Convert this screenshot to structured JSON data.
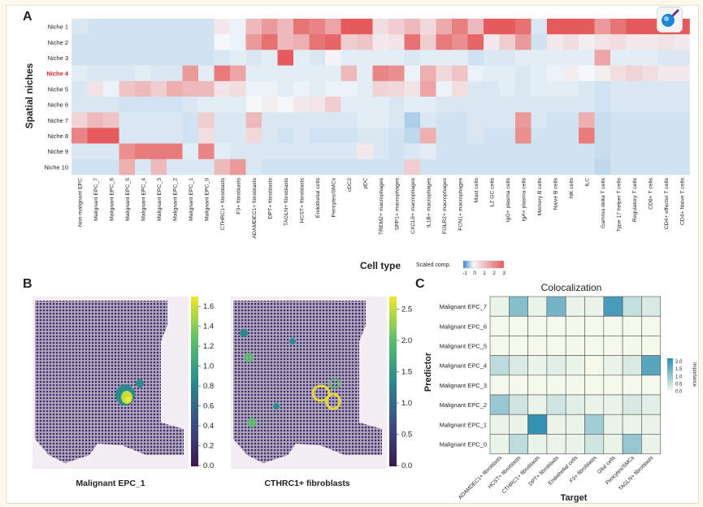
{
  "panels": {
    "a": "A",
    "b": "B",
    "c": "C"
  },
  "panel_a": {
    "ylabel": "Spatial niches",
    "xlabel": "Cell type",
    "legend_title": "Scaled comp.",
    "legend_ticks": [
      "-1",
      "0",
      "1",
      "2",
      "3"
    ],
    "highlight_row": "Niche 4",
    "highlight_color": "#e0232a"
  },
  "panel_b": {
    "left_title": "Malignant EPC_1",
    "right_title": "CTHRC1+ fibroblasts",
    "left_scale": [
      "1.6",
      "1.4",
      "1.2",
      "1.0",
      "0.8",
      "0.6",
      "0.4",
      "0.2",
      "0.0"
    ],
    "right_scale": [
      "2.5",
      "2.0",
      "1.5",
      "1.0",
      "0.5",
      "0.0"
    ]
  },
  "icons": {
    "zoom": "magnifier-icon"
  },
  "colors": {
    "low": "#3a86c4",
    "mid": "#f4f8fb",
    "high": "#e55b5b",
    "imp": "#2b8cb0"
  },
  "chart_data": [
    {
      "type": "heatmap",
      "title": "",
      "xlabel": "Cell type",
      "ylabel": "Spatial niches",
      "rows": [
        "Niche 1",
        "Niche 2",
        "Niche 3",
        "Niche 4",
        "Niche 5",
        "Niche 6",
        "Niche 7",
        "Niche 8",
        "Niche 9",
        "Niche 10"
      ],
      "columns": [
        "Non-malignant EPC",
        "Malignant EPC_7",
        "Malignant EPC_6",
        "Malignant EPC_5",
        "Malignant EPC_4",
        "Malignant EPC_3",
        "Malignant EPC_2",
        "Malignant EPC_1",
        "Malignant EPC_0",
        "CTHRC1+ fibroblasts",
        "F3+ fibroblasts",
        "ADAMDEC1+ fibroblasts",
        "DPT+ fibroblasts",
        "TAGLN+ fibroblasts",
        "HCST+ fibroblasts",
        "Endothelial cells",
        "Pericytes/SMCs",
        "cDC2",
        "pDC",
        "TREM2+ macrophages",
        "SPP1+ macrophages",
        "CXCL8+ macrophages",
        "IL1B+ macrophages",
        "FOLR2+ macrophages",
        "FCN1+ macrophages",
        "Mast cells",
        "LZ GC cells",
        "IgG+ plasma cells",
        "IgA+ plasma cells",
        "Memory B cells",
        "Naive B cells",
        "NK cells",
        "ILC",
        "Gamma delta T cells",
        "Type 17 helper T cells",
        "Regulatory T cells",
        "CD8+ T cells",
        "CD4+ effector T cells",
        "CD4+ Naive T cells"
      ],
      "values": [
        [
          -0.3,
          -0.4,
          -0.4,
          -0.4,
          -0.4,
          -0.4,
          -0.4,
          -0.4,
          -0.4,
          0.3,
          -0.1,
          1.2,
          1.8,
          1.2,
          2.5,
          2.2,
          1.6,
          3.0,
          3.0,
          0.5,
          0.8,
          1.2,
          0.6,
          1.5,
          2.3,
          1.2,
          3.0,
          3.0,
          2.6,
          -0.3,
          3.0,
          3.0,
          3.0,
          1.8,
          2.5,
          3.0,
          3.0,
          3.0,
          3.0
        ],
        [
          -0.4,
          -0.4,
          -0.4,
          -0.4,
          -0.4,
          -0.4,
          -0.4,
          -0.4,
          -0.4,
          0.0,
          -0.1,
          1.8,
          2.6,
          1.2,
          1.4,
          2.5,
          2.8,
          0.8,
          1.0,
          0.3,
          0.4,
          2.6,
          0.8,
          2.4,
          2.0,
          2.8,
          0.3,
          0.8,
          1.8,
          -0.4,
          0.3,
          0.5,
          0.2,
          0.4,
          0.5,
          0.3,
          0.3,
          0.4,
          0.3
        ],
        [
          -0.4,
          -0.4,
          -0.4,
          -0.4,
          -0.4,
          -0.4,
          -0.4,
          -0.4,
          -0.4,
          -0.3,
          -0.2,
          -0.3,
          -0.2,
          3.0,
          -0.2,
          -0.3,
          0.1,
          -0.2,
          -0.2,
          -0.2,
          -0.2,
          -0.3,
          -0.2,
          -0.2,
          -0.2,
          -0.4,
          -0.3,
          -0.3,
          -0.2,
          -0.2,
          -0.2,
          -0.2,
          -0.2,
          1.6,
          -0.2,
          -0.2,
          -0.2,
          -0.3,
          -0.3
        ],
        [
          -0.2,
          -0.3,
          -0.3,
          -0.3,
          -0.2,
          -0.3,
          -0.3,
          1.8,
          -0.2,
          2.4,
          1.6,
          -0.2,
          -0.2,
          -0.2,
          -0.2,
          -0.2,
          -0.2,
          1.2,
          -0.2,
          2.2,
          2.0,
          -0.1,
          1.4,
          0.6,
          1.0,
          -0.1,
          -0.2,
          -0.2,
          -0.3,
          -0.2,
          -0.1,
          0.2,
          0.0,
          0.2,
          0.5,
          0.7,
          0.5,
          0.3,
          0.3
        ],
        [
          -0.3,
          0.4,
          -0.1,
          1.0,
          1.2,
          0.8,
          1.4,
          1.2,
          1.2,
          0.4,
          0.5,
          -0.1,
          -0.1,
          -0.2,
          -0.1,
          -0.2,
          -0.1,
          -0.1,
          -0.2,
          0.7,
          0.6,
          0.4,
          1.6,
          -0.1,
          0.5,
          -0.3,
          -0.3,
          -0.2,
          -0.3,
          -0.2,
          -0.2,
          -0.2,
          -0.3,
          -0.4,
          -0.3,
          -0.3,
          -0.3,
          -0.3,
          -0.3
        ],
        [
          -0.3,
          -0.3,
          -0.3,
          -0.4,
          -0.4,
          -0.4,
          -0.4,
          -0.3,
          -0.2,
          -0.2,
          -0.2,
          0.0,
          0.2,
          0.0,
          0.3,
          0.4,
          0.8,
          -0.2,
          -0.2,
          -0.2,
          -0.3,
          -0.2,
          -0.2,
          -0.3,
          -0.3,
          -0.3,
          -0.3,
          -0.3,
          -0.3,
          -0.3,
          -0.3,
          -0.3,
          -0.3,
          -0.4,
          -0.3,
          -0.3,
          -0.3,
          -0.3,
          -0.3
        ],
        [
          0.7,
          1.2,
          1.0,
          -0.3,
          -0.3,
          -0.3,
          -0.3,
          -0.4,
          0.8,
          -0.3,
          -0.3,
          1.2,
          -0.3,
          -0.3,
          -0.3,
          -0.3,
          -0.3,
          -0.3,
          -0.2,
          -0.2,
          -0.3,
          -0.8,
          -0.3,
          -0.4,
          -0.4,
          -0.3,
          -0.3,
          -0.3,
          1.8,
          -0.3,
          -0.4,
          -0.4,
          1.4,
          -0.5,
          -0.4,
          -0.4,
          -0.4,
          -0.4,
          -0.4
        ],
        [
          2.2,
          3.0,
          3.0,
          -0.3,
          -0.3,
          -0.3,
          -0.3,
          -0.4,
          0.5,
          -0.3,
          -0.3,
          0.6,
          -0.3,
          -0.4,
          -0.3,
          -0.4,
          -0.4,
          -0.4,
          -0.3,
          -0.3,
          -0.4,
          -0.6,
          1.4,
          -0.4,
          -0.4,
          -0.3,
          -0.4,
          -0.4,
          2.0,
          -0.4,
          -0.4,
          -0.4,
          2.4,
          -0.5,
          -0.4,
          -0.4,
          -0.4,
          -0.4,
          -0.4
        ],
        [
          -0.3,
          -0.3,
          -0.3,
          2.0,
          2.4,
          2.4,
          2.4,
          -0.2,
          2.2,
          -0.2,
          -0.3,
          -0.3,
          -0.3,
          -0.3,
          -0.3,
          -0.3,
          -0.3,
          -0.3,
          0.3,
          -0.3,
          -0.4,
          -0.3,
          -0.2,
          -0.4,
          -0.4,
          -0.4,
          -0.4,
          -0.4,
          -0.4,
          -0.4,
          -0.4,
          -0.4,
          -0.4,
          -0.5,
          -0.4,
          -0.4,
          -0.4,
          -0.4,
          -0.4
        ],
        [
          -0.4,
          -0.4,
          -0.4,
          1.4,
          -0.3,
          1.2,
          -0.3,
          -0.3,
          -0.3,
          1.2,
          1.8,
          -0.3,
          -0.4,
          -0.4,
          -0.4,
          -0.4,
          -0.4,
          -0.4,
          -0.4,
          -0.4,
          -0.4,
          0.8,
          -0.4,
          -0.4,
          -0.4,
          -0.4,
          -0.4,
          -0.4,
          -0.4,
          -0.4,
          -0.4,
          -0.4,
          -0.4,
          -0.6,
          -0.4,
          -0.4,
          -0.4,
          -0.4,
          -0.4
        ]
      ],
      "vmin": -1,
      "vmax": 3,
      "colorbar": {
        "label": "Scaled comp.",
        "ticks": [
          -1,
          0,
          1,
          2,
          3
        ]
      }
    },
    {
      "type": "heatmap",
      "title": "Malignant EPC_1",
      "description_values": "spatial abundance map",
      "colorbar": {
        "ticks": [
          0.0,
          0.2,
          0.4,
          0.6,
          0.8,
          1.0,
          1.2,
          1.4,
          1.6
        ],
        "range": [
          0,
          1.7
        ]
      }
    },
    {
      "type": "heatmap",
      "title": "CTHRC1+ fibroblasts",
      "colorbar": {
        "ticks": [
          0.0,
          0.5,
          1.0,
          1.5,
          2.0,
          2.5
        ],
        "range": [
          0,
          2.7
        ]
      }
    },
    {
      "type": "heatmap",
      "title": "Colocalization",
      "xlabel": "Target",
      "ylabel": "Predictor",
      "rows": [
        "Malignant EPC_7",
        "Malignant EPC_6",
        "Malignant EPC_5",
        "Malignant EPC_4",
        "Malignant EPC_3",
        "Malignant EPC_2",
        "Malignant EPC_1",
        "Malignant EPC_0"
      ],
      "columns": [
        "ADAMDEC1+ fibroblasts",
        "HCST+ fibroblasts",
        "CTHRC1+ fibroblasts",
        "DPT+ fibroblasts",
        "Endothelial cells",
        "F3+ fibroblasts",
        "Glial cells",
        "Pericytes/SMCs",
        "TAGLN+ fibroblasts"
      ],
      "values": [
        [
          0.1,
          1.2,
          0.1,
          1.4,
          0.1,
          0.1,
          1.9,
          0.5,
          0.3
        ],
        [
          0.0,
          0.0,
          0.0,
          0.0,
          0.0,
          0.0,
          0.0,
          0.0,
          0.0
        ],
        [
          0.0,
          0.0,
          0.0,
          0.0,
          0.0,
          0.0,
          0.0,
          0.0,
          0.0
        ],
        [
          0.6,
          0.3,
          0.1,
          0.2,
          0.1,
          0.0,
          0.1,
          0.3,
          1.7
        ],
        [
          0.0,
          0.0,
          0.0,
          0.0,
          0.0,
          0.0,
          0.0,
          0.0,
          0.0
        ],
        [
          1.0,
          0.4,
          0.1,
          0.4,
          0.2,
          0.1,
          0.1,
          0.3,
          0.2
        ],
        [
          0.1,
          0.1,
          2.1,
          0.1,
          0.1,
          0.9,
          0.1,
          0.1,
          0.1
        ],
        [
          0.1,
          0.6,
          0.1,
          0.1,
          0.1,
          0.4,
          0.1,
          1.0,
          0.1
        ]
      ],
      "vmin": 0,
      "vmax": 2.2,
      "colorbar": {
        "label": "Importance",
        "ticks": [
          0.0,
          0.5,
          1.0,
          1.5,
          2.0
        ]
      }
    }
  ]
}
